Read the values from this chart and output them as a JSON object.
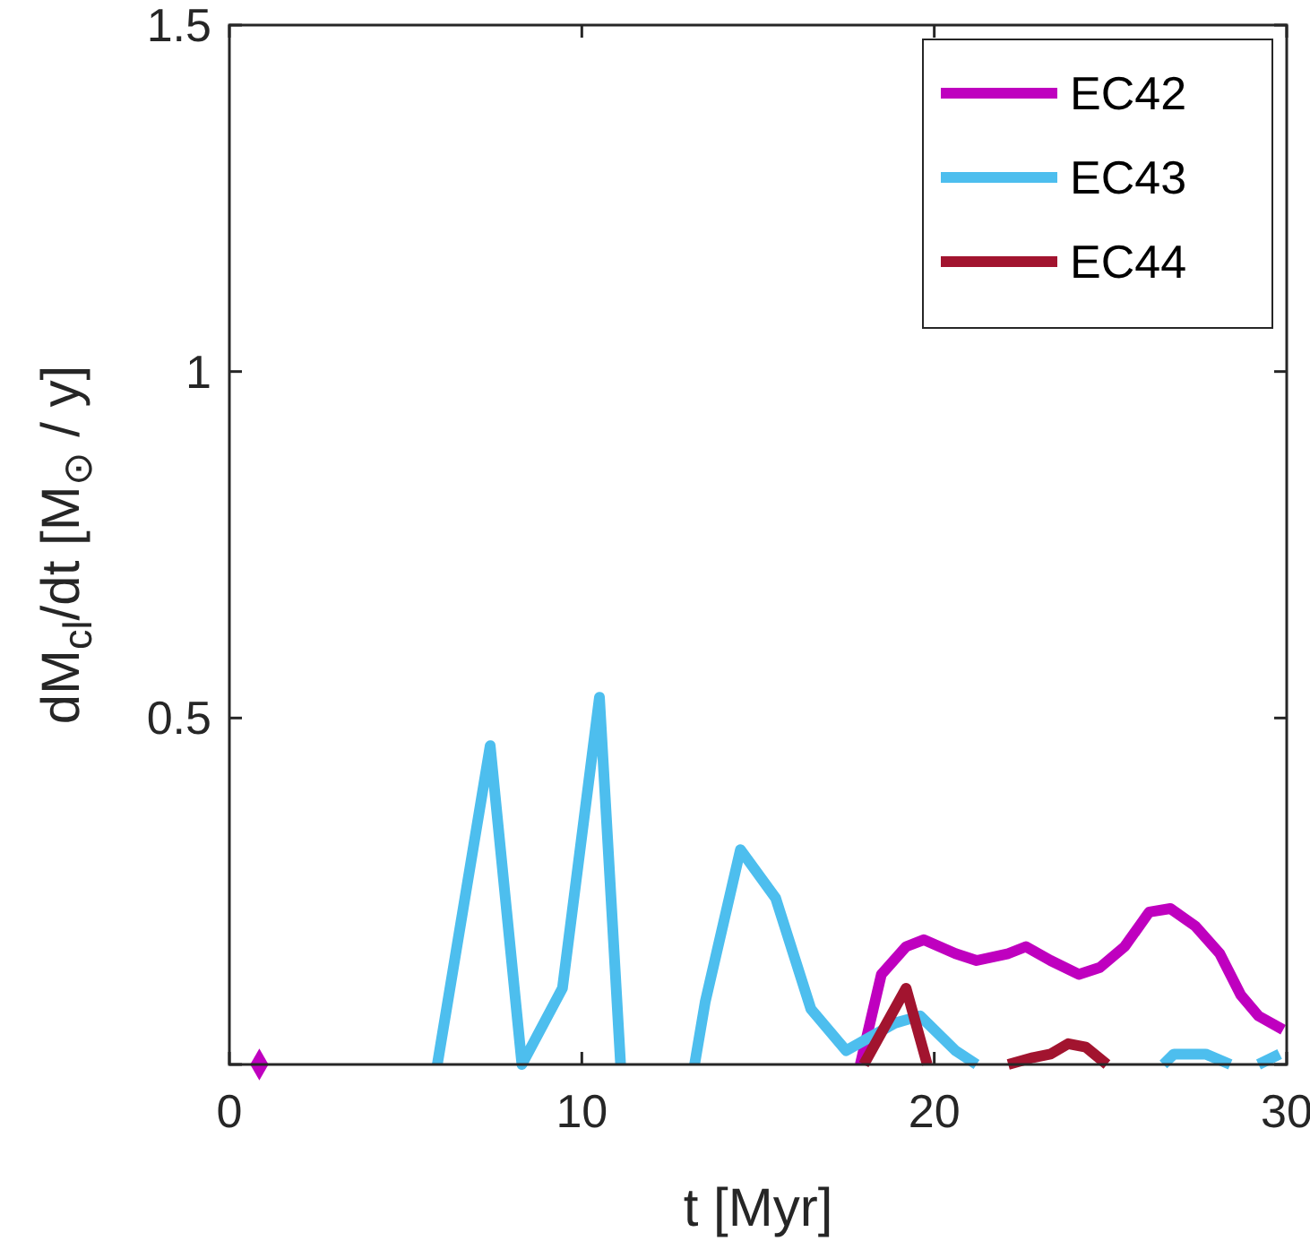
{
  "chart_data": {
    "type": "line",
    "xlabel": "t [Myr]",
    "ylabel": "dM$_{cl}$/dt [M$_{⊙}$ / y]",
    "xlim": [
      0,
      30
    ],
    "ylim": [
      0,
      1.5
    ],
    "xticks": [
      0,
      10,
      20,
      30
    ],
    "yticks": [
      {
        "value": 0,
        "label": null
      },
      0.5,
      1,
      1.5
    ],
    "grid": false,
    "legend": "top right",
    "line_style": "solid",
    "marker": "none",
    "series": [
      {
        "name": "EC42",
        "color": "#bf00bf",
        "x": [
          17.9,
          18.5,
          19.2,
          19.7,
          20.6,
          21.2,
          22.1,
          22.6,
          23.3,
          24.1,
          24.7,
          25.4,
          26.1,
          26.7,
          27.4,
          28.1,
          28.7,
          29.2,
          29.9
        ],
        "values": [
          0,
          0.13,
          0.17,
          0.18,
          0.16,
          0.15,
          0.16,
          0.17,
          0.15,
          0.13,
          0.14,
          0.17,
          0.22,
          0.225,
          0.2,
          0.16,
          0.1,
          0.07,
          0.05
        ]
      },
      {
        "name": "EC43",
        "color": "#4dbeee",
        "x": [
          5.9,
          7.4,
          8.3,
          9.45,
          10.5,
          11.1,
          12.2,
          13.2,
          13.5,
          14.5,
          15.5,
          16.5,
          17.5,
          18.9,
          19.6,
          20.6,
          21.2,
          23.9,
          26.5,
          26.8,
          27.7,
          28.4,
          28.8,
          29.2,
          29.8
        ],
        "values": [
          0,
          0.46,
          0,
          0.11,
          0.53,
          0,
          null,
          0,
          0.09,
          0.31,
          0.24,
          0.08,
          0.02,
          0.06,
          0.07,
          0.02,
          0,
          null,
          0,
          0.015,
          0.015,
          0,
          null,
          0,
          0.015
        ]
      },
      {
        "name": "EC44",
        "color": "#a2142f",
        "x": [
          18.0,
          19.2,
          19.8,
          21.0,
          22.1,
          22.8,
          23.3,
          23.8,
          24.3,
          24.9
        ],
        "values": [
          0,
          0.11,
          0,
          null,
          0,
          0.01,
          0.015,
          0.03,
          0.025,
          0
        ]
      },
      {
        "type": "scatter",
        "color": "#bf00bf",
        "marker": "diamond",
        "x": [
          0.85
        ],
        "values": [
          0
        ]
      }
    ]
  }
}
